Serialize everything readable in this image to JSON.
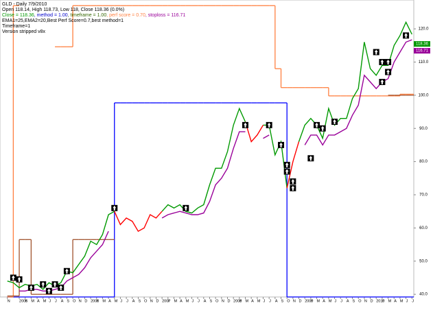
{
  "chart_data": {
    "type": "line",
    "title": "GLD - Daily 7/9/2010",
    "subtitle": "Open 118.14, High 118.73, Low 118, Close 118.36 (0.0%)",
    "info_parts": [
      {
        "text": "Close = 118.36",
        "color": "#009900"
      },
      {
        "text": ", method = 1.00",
        "color": "#0000cc"
      },
      {
        "text": ", timeframe = 1.00",
        "color": "#336600"
      },
      {
        "text": ", perf score = 0.70",
        "color": "#ff7f3f"
      },
      {
        "text": ", stoploss = 116.71",
        "color": "#990099"
      }
    ],
    "notes": [
      "EMA1=25,EMA2=20,Best Perf Score=0.7,best method=1",
      "Timeframe=1",
      "Version stripped v8x"
    ],
    "x": [
      "2004-11",
      "2004-12",
      "2005-01",
      "2005-02",
      "2005-03",
      "2005-04",
      "2005-05",
      "2005-06",
      "2005-07",
      "2005-08",
      "2005-09",
      "2005-10",
      "2005-11",
      "2005-12",
      "2006-01",
      "2006-02",
      "2006-03",
      "2006-04",
      "2006-05",
      "2006-06",
      "2006-07",
      "2006-08",
      "2006-09",
      "2006-10",
      "2006-11",
      "2006-12",
      "2007-01",
      "2007-02",
      "2007-03",
      "2007-04",
      "2007-05",
      "2007-06",
      "2007-07",
      "2007-08",
      "2007-09",
      "2007-10",
      "2007-11",
      "2007-12",
      "2008-01",
      "2008-02",
      "2008-03",
      "2008-04",
      "2008-05",
      "2008-06",
      "2008-07",
      "2008-08",
      "2008-09",
      "2008-10",
      "2008-11",
      "2008-12",
      "2009-01",
      "2009-02",
      "2009-03",
      "2009-04",
      "2009-05",
      "2009-06",
      "2009-07",
      "2009-08",
      "2009-09",
      "2009-10",
      "2009-11",
      "2009-12",
      "2010-01",
      "2010-02",
      "2010-03",
      "2010-04",
      "2010-05",
      "2010-06",
      "2010-07"
    ],
    "xticks": [
      {
        "value": "2004-11",
        "label": "N"
      },
      {
        "value": "2005-01",
        "label": "2005"
      },
      {
        "value": "2005-02",
        "label": "F"
      },
      {
        "value": "2005-03",
        "label": "M"
      },
      {
        "value": "2005-04",
        "label": "A"
      },
      {
        "value": "2005-05",
        "label": "M"
      },
      {
        "value": "2005-06",
        "label": "J"
      },
      {
        "value": "2005-07",
        "label": "J"
      },
      {
        "value": "2005-08",
        "label": "A"
      },
      {
        "value": "2005-09",
        "label": "S"
      },
      {
        "value": "2005-10",
        "label": "O"
      },
      {
        "value": "2005-11",
        "label": "N"
      },
      {
        "value": "2005-12",
        "label": "D"
      },
      {
        "value": "2006-01",
        "label": "2006"
      },
      {
        "value": "2006-02",
        "label": "F"
      },
      {
        "value": "2006-03",
        "label": "M"
      },
      {
        "value": "2006-04",
        "label": "A"
      },
      {
        "value": "2006-05",
        "label": "M"
      },
      {
        "value": "2006-06",
        "label": "J"
      },
      {
        "value": "2006-07",
        "label": "J"
      },
      {
        "value": "2006-08",
        "label": "A"
      },
      {
        "value": "2006-09",
        "label": "S"
      },
      {
        "value": "2006-10",
        "label": "O"
      },
      {
        "value": "2006-11",
        "label": "N"
      },
      {
        "value": "2006-12",
        "label": "D"
      },
      {
        "value": "2007-01",
        "label": "2007"
      },
      {
        "value": "2007-02",
        "label": "F"
      },
      {
        "value": "2007-03",
        "label": "M"
      },
      {
        "value": "2007-04",
        "label": "A"
      },
      {
        "value": "2007-05",
        "label": "M"
      },
      {
        "value": "2007-06",
        "label": "J"
      },
      {
        "value": "2007-07",
        "label": "J"
      },
      {
        "value": "2007-08",
        "label": "A"
      },
      {
        "value": "2007-09",
        "label": "S"
      },
      {
        "value": "2007-10",
        "label": "O"
      },
      {
        "value": "2007-11",
        "label": "N"
      },
      {
        "value": "2007-12",
        "label": "D"
      },
      {
        "value": "2008-01",
        "label": "2008"
      },
      {
        "value": "2008-02",
        "label": "F"
      },
      {
        "value": "2008-03",
        "label": "M"
      },
      {
        "value": "2008-04",
        "label": "A"
      },
      {
        "value": "2008-05",
        "label": "M"
      },
      {
        "value": "2008-06",
        "label": "J"
      },
      {
        "value": "2008-07",
        "label": "J"
      },
      {
        "value": "2008-08",
        "label": "A"
      },
      {
        "value": "2008-09",
        "label": "S"
      },
      {
        "value": "2008-10",
        "label": "O"
      },
      {
        "value": "2008-11",
        "label": "N"
      },
      {
        "value": "2008-12",
        "label": "D"
      },
      {
        "value": "2009-01",
        "label": "2009"
      },
      {
        "value": "2009-02",
        "label": "F"
      },
      {
        "value": "2009-03",
        "label": "M"
      },
      {
        "value": "2009-04",
        "label": "A"
      },
      {
        "value": "2009-05",
        "label": "M"
      },
      {
        "value": "2009-06",
        "label": "J"
      },
      {
        "value": "2009-07",
        "label": "J"
      },
      {
        "value": "2009-08",
        "label": "A"
      },
      {
        "value": "2009-09",
        "label": "S"
      },
      {
        "value": "2009-10",
        "label": "O"
      },
      {
        "value": "2009-11",
        "label": "N"
      },
      {
        "value": "2009-12",
        "label": "D"
      },
      {
        "value": "2010-01",
        "label": "2010"
      },
      {
        "value": "2010-02",
        "label": "F"
      },
      {
        "value": "2010-03",
        "label": "M"
      },
      {
        "value": "2010-04",
        "label": "A"
      },
      {
        "value": "2010-05",
        "label": "M"
      },
      {
        "value": "2010-06",
        "label": "J"
      },
      {
        "value": "2010-07",
        "label": "J"
      }
    ],
    "ylim": [
      39.2,
      128.7
    ],
    "yticks": [
      {
        "value": 40,
        "label": "40.0"
      },
      {
        "value": 50,
        "label": "50.0"
      },
      {
        "value": 60,
        "label": "60.0"
      },
      {
        "value": 70,
        "label": "70.0"
      },
      {
        "value": 80,
        "label": "80.0"
      },
      {
        "value": 90,
        "label": "90.0"
      },
      {
        "value": 100,
        "label": "100.0"
      },
      {
        "value": 110,
        "label": "110.0"
      },
      {
        "value": 120,
        "label": "120.0"
      }
    ],
    "series": [
      {
        "color": "#0000ff",
        "step": true,
        "values": [
          39.2,
          39.2,
          39.2,
          39.2,
          39.2,
          39.2,
          39.2,
          39.2,
          39.2,
          39.2,
          39.2,
          39.2,
          39.2,
          39.2,
          39.2,
          39.2,
          39.2,
          39.2,
          97.7,
          97.7,
          97.7,
          97.7,
          97.7,
          97.7,
          97.7,
          97.7,
          97.7,
          97.7,
          97.7,
          97.7,
          97.7,
          97.7,
          97.7,
          97.7,
          97.7,
          97.7,
          97.7,
          97.7,
          97.7,
          97.7,
          97.7,
          97.7,
          97.7,
          97.7,
          97.7,
          97.7,
          97.7,
          39.2,
          39.2,
          39.2,
          39.2,
          39.2,
          39.2,
          39.2,
          39.2,
          39.2,
          39.2,
          39.2,
          39.2,
          39.2,
          39.2,
          39.2,
          39.2,
          39.2,
          39.2,
          39.2,
          39.2,
          39.2,
          39.2
        ]
      },
      {
        "color": "#ff7f3f",
        "step": true,
        "values": [
          39.2,
          127,
          null,
          null,
          null,
          null,
          null,
          null,
          114.6,
          114.6,
          114.6,
          127,
          127,
          127,
          127,
          127,
          127,
          127,
          127,
          127,
          127,
          127,
          127,
          127,
          127,
          127,
          127,
          127,
          127,
          127,
          127,
          127,
          127,
          127,
          127,
          127,
          127,
          127,
          127,
          127,
          127,
          127,
          127,
          127,
          127,
          108,
          102.3,
          102.3,
          102.3,
          102.3,
          102.3,
          102.3,
          102.3,
          102.3,
          99.8,
          99.8,
          99.8,
          99.8,
          99.8,
          99.8,
          99.8,
          99.8,
          99.8,
          99.8,
          99.8,
          99.8,
          100.3,
          100.3,
          100.3
        ]
      },
      {
        "color": "#a0522d",
        "step": true,
        "values": [
          39.5,
          39.5,
          56.5,
          56.5,
          40,
          40,
          40,
          40,
          40,
          40,
          40,
          56.5,
          56.5,
          56.5,
          56.5,
          56.5,
          56.5,
          56.5,
          null,
          null,
          null,
          null,
          null,
          null,
          null,
          null,
          null,
          null,
          null,
          null,
          null,
          null,
          null,
          null,
          null,
          null,
          null,
          null,
          null,
          null,
          null,
          null,
          null,
          null,
          null,
          null,
          null,
          null,
          null,
          null,
          null,
          null,
          null,
          null,
          null,
          null,
          null,
          null,
          null,
          null,
          null,
          null,
          null,
          null,
          100,
          100,
          100,
          100,
          100
        ]
      },
      {
        "color": "#990099",
        "step": false,
        "values": [
          null,
          null,
          41,
          41,
          41.5,
          41.5,
          41,
          41,
          41.5,
          42,
          44,
          45,
          46,
          48,
          51,
          53,
          55,
          59,
          null,
          null,
          null,
          null,
          null,
          null,
          null,
          null,
          63,
          64,
          64.5,
          65,
          64.5,
          64,
          64,
          64.5,
          68,
          73,
          75,
          78,
          84,
          89,
          89,
          null,
          null,
          87,
          88,
          null,
          null,
          null,
          null,
          null,
          85,
          88,
          88,
          85,
          88,
          88,
          89,
          90,
          94,
          97,
          106,
          104,
          102,
          104,
          105,
          110,
          113,
          116,
          116.71
        ]
      },
      {
        "color": "#009900",
        "step": false,
        "values": [
          44,
          43.5,
          42,
          43,
          42.5,
          43,
          41.5,
          43.5,
          42.5,
          43.5,
          47,
          46.5,
          49,
          51.5,
          56,
          55,
          58,
          64,
          65,
          null,
          null,
          null,
          null,
          null,
          null,
          null,
          65,
          67,
          66,
          67,
          65,
          64.5,
          66,
          67,
          73,
          78,
          78,
          83,
          91,
          96,
          92,
          null,
          null,
          91,
          91,
          82,
          86,
          72,
          null,
          86,
          91,
          93,
          91,
          87,
          96,
          91,
          93,
          93,
          99,
          102,
          116,
          108,
          106,
          109,
          109,
          115,
          118,
          122,
          118.36
        ]
      },
      {
        "color": "#ff0000",
        "step": false,
        "values": [
          null,
          null,
          null,
          null,
          null,
          null,
          null,
          null,
          null,
          null,
          null,
          null,
          null,
          null,
          null,
          null,
          null,
          null,
          65,
          61,
          63,
          62,
          59,
          60,
          64,
          63,
          65,
          null,
          null,
          null,
          null,
          null,
          null,
          null,
          null,
          null,
          null,
          null,
          null,
          null,
          92,
          86,
          88,
          91,
          null,
          null,
          null,
          72,
          80,
          86,
          null,
          null,
          null,
          null,
          null,
          null,
          null,
          null,
          null,
          null,
          null,
          null,
          null,
          null,
          null,
          null,
          null,
          null,
          null
        ]
      }
    ],
    "signals": {
      "x": [
        "2004-12",
        "2005-01",
        "2005-03",
        "2005-05",
        "2005-06",
        "2005-07",
        "2005-08",
        "2005-09",
        "2006-05",
        "2007-05",
        "2008-03",
        "2008-07",
        "2008-09",
        "2008-10",
        "2008-10",
        "2008-11",
        "2008-11",
        "2009-02",
        "2009-03",
        "2009-04",
        "2009-06",
        "2010-01",
        "2010-02",
        "2010-03",
        "2010-03",
        "2010-02",
        "2010-06"
      ],
      "values": [
        45,
        44.5,
        42,
        43,
        41,
        43,
        42,
        47,
        66,
        66,
        91,
        91,
        85,
        79,
        77,
        72,
        74,
        81,
        91,
        90,
        92,
        113,
        110,
        110,
        107,
        104,
        118
      ]
    },
    "last_labels": [
      {
        "value": 118.36,
        "label": "118.36",
        "color": "#009900"
      },
      {
        "value": 116.71,
        "label": "116.71",
        "color": "#990099"
      }
    ]
  }
}
